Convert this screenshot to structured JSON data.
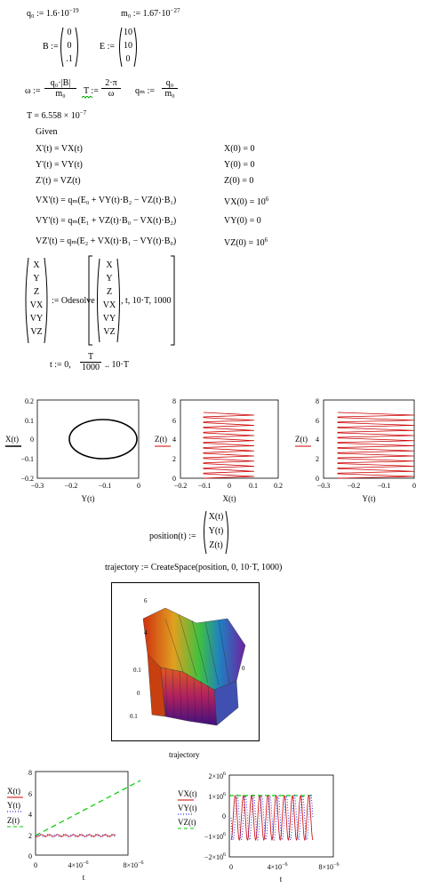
{
  "colors": {
    "red": "#cc0000",
    "green": "#00cc00",
    "blue": "#0000cc",
    "black": "#000000",
    "magenta": "#cc00cc"
  },
  "defs": {
    "q0": "q₀ := 1.6·10",
    "q0_exp": "−19",
    "m0": "m₀ := 1.67·10",
    "m0_exp": "−27",
    "B_label": "B :=",
    "B_vals": [
      "0",
      "0",
      ".1"
    ],
    "E_label": "E :=",
    "E_vals": [
      "10",
      "10",
      "0"
    ],
    "omega": "ω :=",
    "omega_num": "q₀·|B|",
    "omega_den": "m₀",
    "T_label": "T :=",
    "T_num": "2·π",
    "T_den": "ω",
    "qm_label": "qₘ :=",
    "qm_num": "q₀",
    "qm_den": "m₀",
    "T_result": "T = 6.558 × 10",
    "T_result_exp": "−7"
  },
  "given": {
    "title": "Given",
    "eqs": [
      "X'(t) = VX(t)",
      "Y'(t) = VY(t)",
      "Z'(t) = VZ(t)",
      "VX'(t) = qₘ(E₀ + VY(t)·B₂ − VZ(t)·B₁)",
      "VY'(t) = qₘ(E₁ + VZ(t)·B₀ − VX(t)·B₂)",
      "VZ'(t) = qₘ(E₂ + VX(t)·B₁ − VY(t)·B₀)"
    ],
    "inits": [
      "X(0) = 0",
      "Y(0) = 0",
      "Z(0) = 0",
      "VX(0) = 10",
      "VY(0) = 0",
      "VZ(0) = 10"
    ],
    "init_exps": [
      "",
      "",
      "",
      "6",
      "",
      "6"
    ]
  },
  "odesolve": {
    "vars": [
      "X",
      "Y",
      "Z",
      "VX",
      "VY",
      "VZ"
    ],
    "assign": ":= Odesolve",
    "args": ", t, 10·T, 1000"
  },
  "range": {
    "t_label": "t := 0,",
    "num": "T",
    "den": "1000",
    "tail": ".. 10·T"
  },
  "plots_top": [
    {
      "ylabel": "X(t)",
      "xlabel": "Y(t)",
      "yticks": [
        "0.2",
        "0.1",
        "0",
        "−0.1",
        "−0.2"
      ],
      "xticks": [
        "−0.3",
        "−0.2",
        "−0.1",
        "0"
      ]
    },
    {
      "ylabel": "Z(t)",
      "xlabel": "X(t)",
      "yticks": [
        "8",
        "6",
        "4",
        "2",
        "0"
      ],
      "xticks": [
        "−0.2",
        "−0.1",
        "0",
        "0.1",
        "0.2"
      ]
    },
    {
      "ylabel": "Z(t)",
      "xlabel": "Y(t)",
      "yticks": [
        "8",
        "6",
        "4",
        "2",
        "0"
      ],
      "xticks": [
        "−0.3",
        "−0.2",
        "−0.1",
        "0"
      ]
    }
  ],
  "position": {
    "label": "position(t) :=",
    "vals": [
      "X(t)",
      "Y(t)",
      "Z(t)"
    ]
  },
  "trajectory_def": "trajectory := CreateSpace(position, 0, 10·T, 1000)",
  "surface": {
    "ticks": [
      "6",
      "4",
      "0.1",
      "0",
      "0",
      "0.1"
    ],
    "caption": "trajectory"
  },
  "plots_bottom": [
    {
      "legend": [
        "X(t)",
        "Y(t)",
        "Z(t)"
      ],
      "xlabel": "t",
      "yticks": [
        "8",
        "6",
        "4",
        "2",
        "0"
      ],
      "xticks": [
        "0",
        "4×10",
        "8×10"
      ],
      "xexp": "−6"
    },
    {
      "legend": [
        "VX(t)",
        "VY(t)",
        "VZ(t)"
      ],
      "xlabel": "t",
      "yticks": [
        "2×10",
        "1×10",
        "0",
        "−1×10",
        "−2×10"
      ],
      "yexp": "6",
      "xticks": [
        "0",
        "4×10",
        "8×10"
      ],
      "xexp": "−6"
    }
  ]
}
